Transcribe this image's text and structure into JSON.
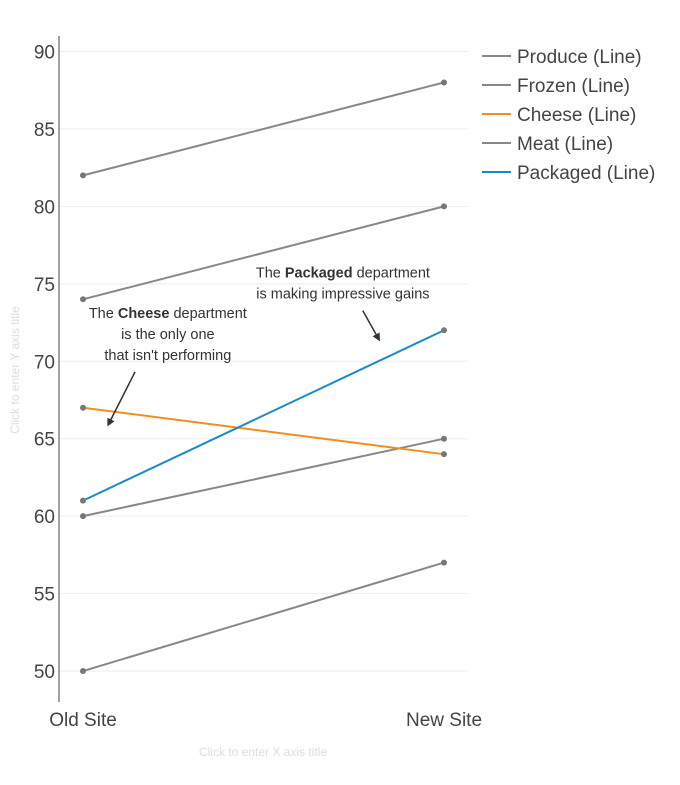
{
  "chart_data": {
    "type": "line",
    "x": [
      "Old Site",
      "New Site"
    ],
    "ylim": [
      48,
      91
    ],
    "yticks": [
      50,
      55,
      60,
      65,
      70,
      75,
      80,
      85,
      90
    ],
    "xlabel": "Click to enter X axis title",
    "ylabel": "Click to enter Y axis title",
    "grid": true,
    "legend_position": "top-right",
    "series": [
      {
        "name": "Produce (Line)",
        "values": [
          82,
          88
        ],
        "color": "#888888",
        "highlight": false
      },
      {
        "name": "Frozen (Line)",
        "values": [
          74,
          80
        ],
        "color": "#888888",
        "highlight": false
      },
      {
        "name": "Cheese (Line)",
        "values": [
          67,
          64
        ],
        "color": "#f28e1c",
        "highlight": true
      },
      {
        "name": "Meat (Line)",
        "values": [
          60,
          65
        ],
        "color": "#888888",
        "highlight": false
      },
      {
        "name": "Packaged (Line)",
        "values": [
          61,
          72
        ],
        "color": "#1a8bc7",
        "highlight": true
      },
      {
        "name": "",
        "values": [
          50,
          57
        ],
        "color": "#888888",
        "highlight": false
      }
    ],
    "annotations": [
      {
        "lines": [
          [
            {
              "text": "The "
            },
            {
              "text": "Cheese",
              "bold": true
            },
            {
              "text": " department"
            }
          ],
          [
            {
              "text": "is the only one"
            }
          ],
          [
            {
              "text": "that isn't performing"
            }
          ]
        ],
        "anchor_x": 0.07,
        "anchor_y": 65.9,
        "text_x": 0.235,
        "text_y": 72.8
      },
      {
        "lines": [
          [
            {
              "text": "The "
            },
            {
              "text": "Packaged",
              "bold": true
            },
            {
              "text": " department"
            }
          ],
          [
            {
              "text": "is making impressive gains"
            }
          ]
        ],
        "anchor_x": 0.82,
        "anchor_y": 71.4,
        "text_x": 0.72,
        "text_y": 75.4
      }
    ]
  }
}
